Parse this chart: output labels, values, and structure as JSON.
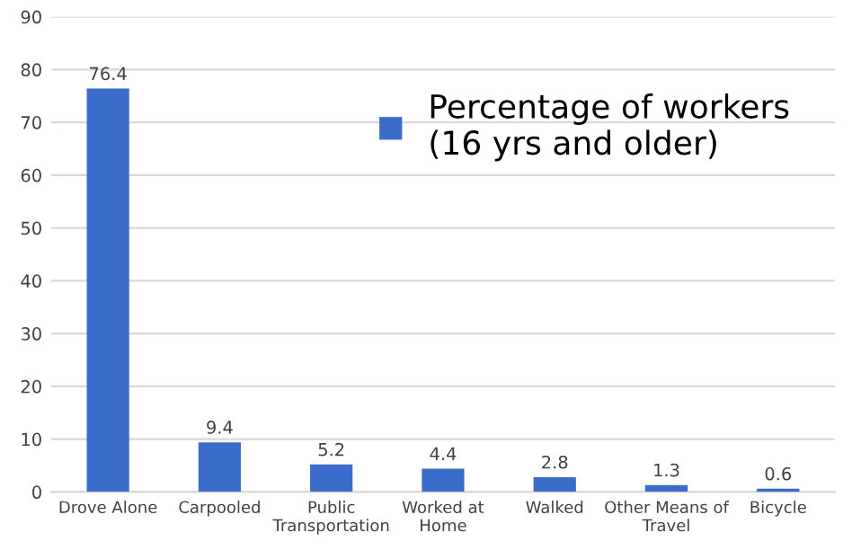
{
  "chart_data": {
    "type": "bar",
    "categories": [
      "Drove Alone",
      "Carpooled",
      "Public\nTransportation",
      "Worked at\nHome",
      "Walked",
      "Other Means of\nTravel",
      "Bicycle"
    ],
    "series": [
      {
        "name": "Percentage of workers\n(16 yrs and older)",
        "color": "#3b6cc9",
        "values": [
          76.4,
          9.4,
          5.2,
          4.4,
          2.8,
          1.3,
          0.6
        ]
      }
    ],
    "ylim": [
      0,
      90
    ],
    "yticks": [
      0,
      10,
      20,
      30,
      40,
      50,
      60,
      70,
      80,
      90
    ],
    "grid": "y",
    "data_labels": true,
    "legend": "top right"
  }
}
